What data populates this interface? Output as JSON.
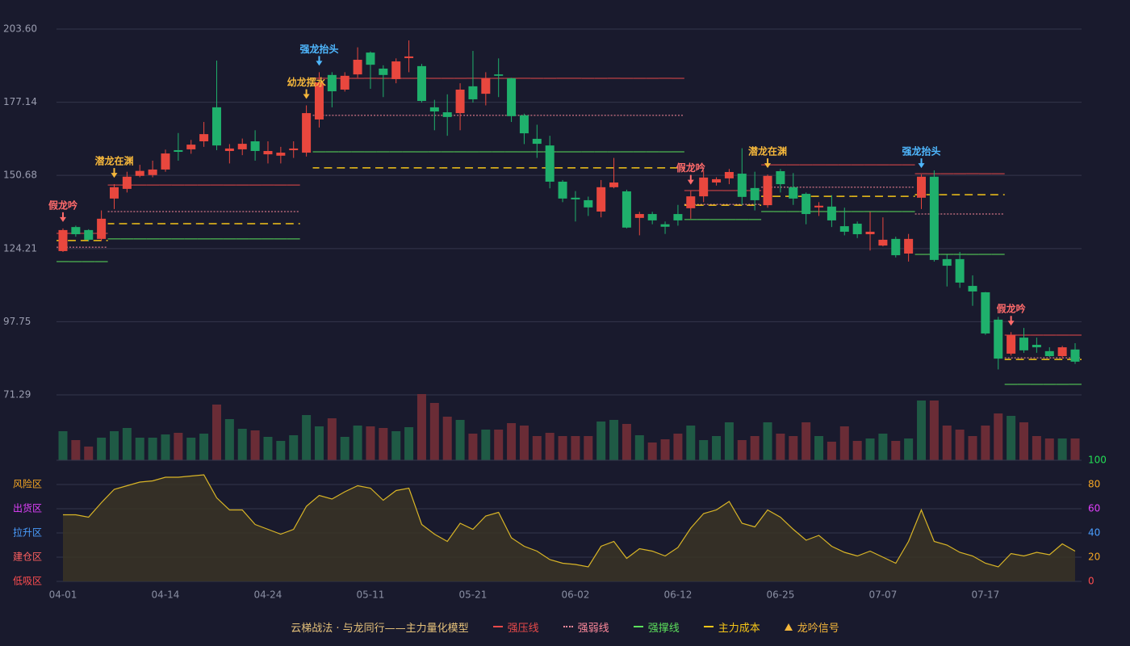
{
  "chart_data": {
    "type": "candlestick",
    "categories": [
      "04-01",
      null,
      null,
      null,
      null,
      null,
      null,
      null,
      "04-14",
      null,
      null,
      null,
      null,
      null,
      null,
      null,
      "04-24",
      null,
      null,
      null,
      null,
      null,
      null,
      null,
      "05-11",
      null,
      null,
      null,
      null,
      null,
      null,
      null,
      "05-21",
      null,
      null,
      null,
      null,
      null,
      null,
      null,
      "06-02",
      null,
      null,
      null,
      null,
      null,
      null,
      null,
      "06-12",
      null,
      null,
      null,
      null,
      null,
      null,
      null,
      "06-25",
      null,
      null,
      null,
      null,
      null,
      null,
      null,
      "07-07",
      null,
      null,
      null,
      null,
      null,
      null,
      null,
      "07-17",
      null,
      null,
      null,
      null,
      null,
      null,
      null
    ],
    "open": [
      123.3,
      132.0,
      130.9,
      127.7,
      142.3,
      145.8,
      150.5,
      150.8,
      152.8,
      159.8,
      160.1,
      163.0,
      175.3,
      159.5,
      160.1,
      163.0,
      158.3,
      157.8,
      159.8,
      158.9,
      170.9,
      187.0,
      181.7,
      187.2,
      195.1,
      189.3,
      185.5,
      193.1,
      190.2,
      175.3,
      173.5,
      173.2,
      182.9,
      180.2,
      187.2,
      185.8,
      172.4,
      163.9,
      161.5,
      148.4,
      142.6,
      141.7,
      137.6,
      146.4,
      144.9,
      135.3,
      136.7,
      133.0,
      136.7,
      138.8,
      143.1,
      148.1,
      149.6,
      151.3,
      146.1,
      139.9,
      152.2,
      146.4,
      144.0,
      139.1,
      139.4,
      132.3,
      133.2,
      129.4,
      125.3,
      127.7,
      122.4,
      142.6,
      150.2,
      120.4,
      120.4,
      110.7,
      108.4,
      98.5,
      86.2,
      92.0,
      89.4,
      87.1,
      85.3,
      87.7
    ],
    "high": [
      131.5,
      132.5,
      131.2,
      138.0,
      147.5,
      152.0,
      154.5,
      156.0,
      160.0,
      166.0,
      163.5,
      170.0,
      192.2,
      162.0,
      164.0,
      167.0,
      163.0,
      161.0,
      163.0,
      176.0,
      188.0,
      188.0,
      188.0,
      197.0,
      195.5,
      190.5,
      193.0,
      199.5,
      191.0,
      178.0,
      180.0,
      184.0,
      195.7,
      188.0,
      193.0,
      186.0,
      173.0,
      169.0,
      165.0,
      149.0,
      145.0,
      143.0,
      149.0,
      157.0,
      145.5,
      137.5,
      137.5,
      134.0,
      140.0,
      145.0,
      152.5,
      150.0,
      153.0,
      160.5,
      152.0,
      151.0,
      153.0,
      151.5,
      144.5,
      141.0,
      143.5,
      139.0,
      134.0,
      137.5,
      135.5,
      128.5,
      129.5,
      151.0,
      152.5,
      122.0,
      123.0,
      114.5,
      108.5,
      99.5,
      94.0,
      95.5,
      92.0,
      88.5,
      89.0,
      90.0
    ],
    "low": [
      123.0,
      128.5,
      126.8,
      127.0,
      138.5,
      144.5,
      150.0,
      150.0,
      152.0,
      156.0,
      158.5,
      161.0,
      159.8,
      155.0,
      158.0,
      156.0,
      155.0,
      155.0,
      157.0,
      157.5,
      168.0,
      175.3,
      181.0,
      186.0,
      182.0,
      179.0,
      184.0,
      188.0,
      177.0,
      167.0,
      165.0,
      167.0,
      177.0,
      176.0,
      179.0,
      170.0,
      162.0,
      157.0,
      146.0,
      141.0,
      134.0,
      136.0,
      135.5,
      146.0,
      131.5,
      129.0,
      133.0,
      129.5,
      132.5,
      135.0,
      141.0,
      147.0,
      147.5,
      140.0,
      138.0,
      139.0,
      144.5,
      140.0,
      133.0,
      136.0,
      132.0,
      129.0,
      128.0,
      123.5,
      125.0,
      121.0,
      119.5,
      138.5,
      119.5,
      110.5,
      110.0,
      103.5,
      93.0,
      80.5,
      85.5,
      86.5,
      86.5,
      85.0,
      84.5,
      82.5
    ],
    "close": [
      130.9,
      129.4,
      127.4,
      135.0,
      146.4,
      150.2,
      152.3,
      152.8,
      158.6,
      159.2,
      161.8,
      165.6,
      161.5,
      160.4,
      162.1,
      159.5,
      159.5,
      158.9,
      160.4,
      173.2,
      184.3,
      181.1,
      186.7,
      192.5,
      190.7,
      187.0,
      191.9,
      193.7,
      177.6,
      173.8,
      171.8,
      181.7,
      178.2,
      185.8,
      186.7,
      172.1,
      165.9,
      162.1,
      148.4,
      142.3,
      142.0,
      139.1,
      146.4,
      148.1,
      131.8,
      136.7,
      134.4,
      132.1,
      134.4,
      143.1,
      149.9,
      149.3,
      151.9,
      142.9,
      141.7,
      150.5,
      147.5,
      142.3,
      136.7,
      139.7,
      134.4,
      130.3,
      129.4,
      130.3,
      127.4,
      121.8,
      127.7,
      150.2,
      120.1,
      118.0,
      111.9,
      108.7,
      93.5,
      84.4,
      92.9,
      87.4,
      88.5,
      85.3,
      88.5,
      83.3
    ],
    "up_color": "#e8473e",
    "down_color": "#1fb06c",
    "ylim": [
      71.29,
      203.6
    ],
    "yticks": [
      {
        "value": 203.6,
        "label": "203.60"
      },
      177.14,
      150.68,
      124.21,
      97.75,
      71.29
    ],
    "grid": true,
    "series": [
      {
        "name": "强压线",
        "color": "#e84a4a",
        "style": "solid",
        "values": [
          129.7,
          129.7,
          129.7,
          129.7,
          147.2,
          147.2,
          147.2,
          147.2,
          147.2,
          147.2,
          147.2,
          147.2,
          147.2,
          147.2,
          147.2,
          147.2,
          147.2,
          147.2,
          147.2,
          null,
          185.8,
          185.8,
          185.8,
          185.8,
          185.8,
          185.8,
          185.8,
          185.8,
          185.8,
          185.8,
          185.8,
          185.8,
          185.8,
          185.8,
          185.8,
          185.8,
          185.8,
          185.8,
          185.8,
          185.8,
          185.8,
          185.8,
          185.8,
          185.8,
          185.8,
          185.8,
          185.8,
          185.8,
          185.8,
          145.2,
          145.2,
          145.2,
          145.2,
          145.2,
          145.2,
          154.5,
          154.5,
          154.5,
          154.5,
          154.5,
          154.5,
          154.5,
          154.5,
          154.5,
          154.5,
          154.5,
          154.5,
          151.3,
          151.3,
          151.3,
          151.3,
          151.3,
          151.3,
          151.3,
          92.9,
          92.9,
          92.9,
          92.9,
          92.9,
          92.9
        ]
      },
      {
        "name": "强弱线",
        "color": "#ff8a9c",
        "style": "dotted",
        "values": [
          124.7,
          124.7,
          124.7,
          124.7,
          137.6,
          137.6,
          137.6,
          137.6,
          137.6,
          137.6,
          137.6,
          137.6,
          137.6,
          137.6,
          137.6,
          137.6,
          137.6,
          137.6,
          137.6,
          null,
          172.4,
          172.4,
          172.4,
          172.4,
          172.4,
          172.4,
          172.4,
          172.4,
          172.4,
          172.4,
          172.4,
          172.4,
          172.4,
          172.4,
          172.4,
          172.4,
          172.4,
          172.4,
          172.4,
          172.4,
          172.4,
          172.4,
          172.4,
          172.4,
          172.4,
          172.4,
          172.4,
          172.4,
          172.4,
          140.2,
          140.2,
          140.2,
          140.2,
          140.2,
          140.2,
          146.4,
          146.4,
          146.4,
          146.4,
          146.4,
          146.4,
          146.4,
          146.4,
          146.4,
          146.4,
          146.4,
          146.4,
          136.7,
          136.7,
          136.7,
          136.7,
          136.7,
          136.7,
          136.7,
          84.7,
          84.7,
          84.7,
          84.7,
          84.7,
          84.7
        ]
      },
      {
        "name": "强撑线",
        "color": "#5ce05c",
        "style": "solid",
        "values": [
          119.5,
          119.5,
          119.5,
          119.5,
          127.7,
          127.7,
          127.7,
          127.7,
          127.7,
          127.7,
          127.7,
          127.7,
          127.7,
          127.7,
          127.7,
          127.7,
          127.7,
          127.7,
          127.7,
          null,
          159.2,
          159.2,
          159.2,
          159.2,
          159.2,
          159.2,
          159.2,
          159.2,
          159.2,
          159.2,
          159.2,
          159.2,
          159.2,
          159.2,
          159.2,
          159.2,
          159.2,
          159.2,
          159.2,
          159.2,
          159.2,
          159.2,
          159.2,
          159.2,
          159.2,
          159.2,
          159.2,
          159.2,
          159.2,
          134.7,
          134.7,
          134.7,
          134.7,
          134.7,
          134.7,
          137.6,
          137.6,
          137.6,
          137.6,
          137.6,
          137.6,
          137.6,
          137.6,
          137.6,
          137.6,
          137.6,
          137.6,
          122.1,
          122.1,
          122.1,
          122.1,
          122.1,
          122.1,
          122.1,
          75.1,
          75.1,
          75.1,
          75.1,
          75.1,
          75.1
        ]
      },
      {
        "name": "主力成本",
        "color": "#f5c518",
        "style": "dashed",
        "values": [
          127.1,
          127.1,
          127.1,
          127.1,
          133.2,
          133.2,
          133.2,
          133.2,
          133.2,
          133.2,
          133.2,
          133.2,
          133.2,
          133.2,
          133.2,
          133.2,
          133.2,
          133.2,
          133.2,
          null,
          153.4,
          153.4,
          153.4,
          153.4,
          153.4,
          153.4,
          153.4,
          153.4,
          153.4,
          153.4,
          153.4,
          153.4,
          153.4,
          153.4,
          153.4,
          153.4,
          153.4,
          153.4,
          153.4,
          153.4,
          153.4,
          153.4,
          153.4,
          153.4,
          153.4,
          153.4,
          153.4,
          153.4,
          153.4,
          139.9,
          139.9,
          139.9,
          139.9,
          139.9,
          139.9,
          143.1,
          143.1,
          143.1,
          143.1,
          143.1,
          143.1,
          143.1,
          143.1,
          143.1,
          143.1,
          143.1,
          143.1,
          143.7,
          143.7,
          143.7,
          143.7,
          143.7,
          143.7,
          143.7,
          84.1,
          84.1,
          84.1,
          84.1,
          84.1,
          84.1
        ]
      }
    ],
    "signals": [
      {
        "label": "假龙吟",
        "color": "#ff6b6b"
      },
      null,
      null,
      null,
      {
        "label": "潜龙在渊",
        "color": "#f5b73b"
      },
      null,
      null,
      null,
      null,
      null,
      null,
      null,
      null,
      null,
      null,
      null,
      null,
      null,
      null,
      {
        "label": "幼龙摆水",
        "color": "#f5b73b"
      },
      {
        "label": "强龙抬头",
        "color": "#4fb8ff"
      },
      null,
      null,
      null,
      null,
      null,
      null,
      null,
      null,
      null,
      null,
      null,
      null,
      null,
      null,
      null,
      null,
      null,
      null,
      null,
      null,
      null,
      null,
      null,
      null,
      null,
      null,
      null,
      null,
      {
        "label": "假龙吟",
        "color": "#ff6b6b"
      },
      null,
      null,
      null,
      null,
      null,
      {
        "label": "潜龙在渊",
        "color": "#f5b73b"
      },
      null,
      null,
      null,
      null,
      null,
      null,
      null,
      null,
      null,
      null,
      null,
      {
        "label": "强龙抬头",
        "color": "#4fb8ff"
      },
      null,
      null,
      null,
      null,
      null,
      null,
      {
        "label": "假龙吟",
        "color": "#ff6b6b"
      },
      null,
      null,
      null,
      null,
      null
    ],
    "signal_legend": {
      "name": "龙吟信号",
      "color": "#f5b73b"
    },
    "volume": [
      36,
      25,
      17,
      28,
      36,
      40,
      28,
      28,
      32,
      34,
      28,
      33,
      69,
      51,
      39,
      37,
      29,
      24,
      31,
      56,
      42,
      52,
      29,
      43,
      42,
      40,
      36,
      41,
      82,
      71,
      54,
      50,
      33,
      38,
      38,
      46,
      43,
      30,
      34,
      30,
      30,
      30,
      48,
      50,
      45,
      31,
      22,
      26,
      33,
      43,
      25,
      30,
      47,
      25,
      30,
      47,
      33,
      30,
      47,
      30,
      23,
      42,
      24,
      27,
      33,
      24,
      27,
      74,
      74,
      43,
      38,
      30,
      43,
      58,
      55,
      47,
      30,
      27,
      27,
      27
    ],
    "volume_up_color": "#1f5a45",
    "volume_down_color": "#6a2c36",
    "indicator": {
      "values": [
        55,
        55,
        53,
        65,
        76,
        79,
        82,
        83,
        86,
        86,
        87,
        88,
        69,
        59,
        59,
        47,
        43,
        39,
        43,
        62,
        71,
        68,
        74,
        79,
        77,
        67,
        75,
        77,
        47,
        39,
        33,
        48,
        43,
        54,
        57,
        36,
        29,
        25,
        18,
        15,
        14,
        12,
        29,
        33,
        19,
        27,
        25,
        21,
        28,
        44,
        56,
        59,
        66,
        48,
        45,
        59,
        53,
        43,
        34,
        38,
        29,
        24,
        21,
        25,
        20,
        15,
        33,
        59,
        33,
        30,
        24,
        21,
        15,
        12,
        23,
        21,
        24,
        22,
        31,
        25
      ],
      "color": "#d9b526",
      "fill": "#3a3426",
      "ylim": [
        0,
        100
      ],
      "yticks": [
        0,
        20,
        40,
        60,
        80,
        100
      ],
      "ytick_colors": [
        "#ff4d4f",
        "#f5a623",
        "#4a9eff",
        "#e040fb",
        "#f5a623",
        "#22dd55"
      ],
      "zones": [
        {
          "value": 80,
          "label": "风险区",
          "color": "#f5a623"
        },
        {
          "value": 60,
          "label": "出货区",
          "color": "#e040fb"
        },
        {
          "value": 40,
          "label": "拉升区",
          "color": "#4a9eff"
        },
        {
          "value": 20,
          "label": "建仓区",
          "color": "#ff6060"
        },
        {
          "value": 0,
          "label": "低吸区",
          "color": "#ff4d4f"
        }
      ]
    },
    "legend_title": "云梯战法 · 与龙同行——主力量化模型"
  }
}
